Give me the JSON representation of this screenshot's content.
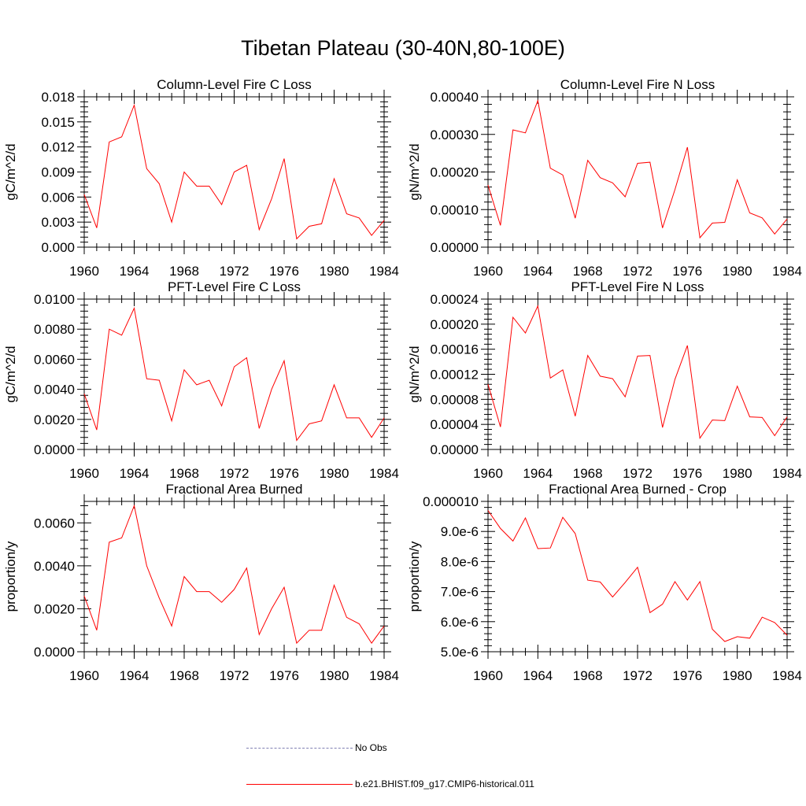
{
  "title": "Tibetan Plateau (30-40N,80-100E)",
  "colors": {
    "model": "#ff0000",
    "obs": "#7f7fb2",
    "axis": "#000000"
  },
  "legend": {
    "obs_label": "No Obs",
    "model_label": "b.e21.BHIST.f09_g17.CMIP6-historical.011"
  },
  "chart_data": [
    {
      "type": "line",
      "title": "Column-Level Fire C Loss",
      "ylabel": "gC/m^2/d",
      "xlim": [
        1960,
        1984
      ],
      "ylim": [
        0,
        0.018
      ],
      "xticks": [
        "1960",
        "1964",
        "1968",
        "1972",
        "1976",
        "1980",
        "1984"
      ],
      "yticks": [
        "0.000",
        "0.003",
        "0.006",
        "0.009",
        "0.012",
        "0.015",
        "0.018"
      ],
      "x": [
        1960,
        1961,
        1962,
        1963,
        1964,
        1965,
        1966,
        1967,
        1968,
        1969,
        1970,
        1971,
        1972,
        1973,
        1974,
        1975,
        1976,
        1977,
        1978,
        1979,
        1980,
        1981,
        1982,
        1983,
        1984
      ],
      "series": [
        {
          "values": [
            0.0063,
            0.0023,
            0.0126,
            0.0132,
            0.017,
            0.0094,
            0.0076,
            0.003,
            0.009,
            0.0073,
            0.0073,
            0.0051,
            0.009,
            0.0098,
            0.0021,
            0.0058,
            0.0106,
            0.001,
            0.0025,
            0.0028,
            0.0082,
            0.004,
            0.0035,
            0.0014,
            0.0032
          ]
        }
      ]
    },
    {
      "type": "line",
      "title": "Column-Level Fire N Loss",
      "ylabel": "gN/m^2/d",
      "xlim": [
        1960,
        1984
      ],
      "ylim": [
        0,
        0.0004
      ],
      "xticks": [
        "1960",
        "1964",
        "1968",
        "1972",
        "1976",
        "1980",
        "1984"
      ],
      "yticks": [
        "0.00000",
        "0.00010",
        "0.00020",
        "0.00030",
        "0.00040"
      ],
      "x": [
        1960,
        1961,
        1962,
        1963,
        1964,
        1965,
        1966,
        1967,
        1968,
        1969,
        1970,
        1971,
        1972,
        1973,
        1974,
        1975,
        1976,
        1977,
        1978,
        1979,
        1980,
        1981,
        1982,
        1983,
        1984
      ],
      "series": [
        {
          "values": [
            0.000165,
            5.8e-05,
            0.000312,
            0.000304,
            0.00039,
            0.00021,
            0.000192,
            7.7e-05,
            0.000231,
            0.000185,
            0.000171,
            0.000134,
            0.000223,
            0.000226,
            5.1e-05,
            0.000153,
            0.000266,
            2.5e-05,
            6.4e-05,
            6.6e-05,
            0.000179,
            9.1e-05,
            7.8e-05,
            3.5e-05,
            7.5e-05
          ]
        }
      ]
    },
    {
      "type": "line",
      "title": "PFT-Level Fire C Loss",
      "ylabel": "gC/m^2/d",
      "xlim": [
        1960,
        1984
      ],
      "ylim": [
        0,
        0.01
      ],
      "xticks": [
        "1960",
        "1964",
        "1968",
        "1972",
        "1976",
        "1980",
        "1984"
      ],
      "yticks": [
        "0.0000",
        "0.0020",
        "0.0040",
        "0.0060",
        "0.0080",
        "0.0100"
      ],
      "x": [
        1960,
        1961,
        1962,
        1963,
        1964,
        1965,
        1966,
        1967,
        1968,
        1969,
        1970,
        1971,
        1972,
        1973,
        1974,
        1975,
        1976,
        1977,
        1978,
        1979,
        1980,
        1981,
        1982,
        1983,
        1984
      ],
      "series": [
        {
          "values": [
            0.0037,
            0.0013,
            0.008,
            0.0076,
            0.0094,
            0.0047,
            0.0046,
            0.0019,
            0.0053,
            0.0043,
            0.0046,
            0.0029,
            0.0055,
            0.0061,
            0.0014,
            0.004,
            0.0059,
            0.0006,
            0.0017,
            0.0019,
            0.0043,
            0.0021,
            0.0021,
            0.0008,
            0.0021
          ]
        }
      ]
    },
    {
      "type": "line",
      "title": "PFT-Level Fire N Loss",
      "ylabel": "gN/m^2/d",
      "xlim": [
        1960,
        1984
      ],
      "ylim": [
        0,
        0.00024
      ],
      "xticks": [
        "1960",
        "1964",
        "1968",
        "1972",
        "1976",
        "1980",
        "1984"
      ],
      "yticks": [
        "0.00000",
        "0.00004",
        "0.00008",
        "0.00012",
        "0.00016",
        "0.00020",
        "0.00024"
      ],
      "x": [
        1960,
        1961,
        1962,
        1963,
        1964,
        1965,
        1966,
        1967,
        1968,
        1969,
        1970,
        1971,
        1972,
        1973,
        1974,
        1975,
        1976,
        1977,
        1978,
        1979,
        1980,
        1981,
        1982,
        1983,
        1984
      ],
      "series": [
        {
          "values": [
            0.000104,
            3.6e-05,
            0.000211,
            0.000186,
            0.000229,
            0.000114,
            0.000127,
            5.3e-05,
            0.00015,
            0.000117,
            0.000113,
            8.4e-05,
            0.000149,
            0.00015,
            3.5e-05,
            0.000112,
            0.000166,
            1.8e-05,
            4.7e-05,
            4.6e-05,
            0.000101,
            5.2e-05,
            5.1e-05,
            2.2e-05,
            5.2e-05
          ]
        }
      ]
    },
    {
      "type": "line",
      "title": "Fractional Area Burned",
      "ylabel": "proportion/y",
      "xlim": [
        1960,
        1984
      ],
      "ylim": [
        0,
        0.007
      ],
      "xticks": [
        "1960",
        "1964",
        "1968",
        "1972",
        "1976",
        "1980",
        "1984"
      ],
      "yticks": [
        "0.0000",
        "0.0020",
        "0.0040",
        "0.0060"
      ],
      "ytick_values": [
        0,
        0.002,
        0.004,
        0.006
      ],
      "x": [
        1960,
        1961,
        1962,
        1963,
        1964,
        1965,
        1966,
        1967,
        1968,
        1969,
        1970,
        1971,
        1972,
        1973,
        1974,
        1975,
        1976,
        1977,
        1978,
        1979,
        1980,
        1981,
        1982,
        1983,
        1984
      ],
      "series": [
        {
          "values": [
            0.0026,
            0.001,
            0.0051,
            0.0053,
            0.0068,
            0.004,
            0.0025,
            0.0012,
            0.0035,
            0.0028,
            0.0028,
            0.0023,
            0.0029,
            0.0039,
            0.0008,
            0.002,
            0.003,
            0.0004,
            0.001,
            0.001,
            0.0031,
            0.0016,
            0.0013,
            0.0004,
            0.0012
          ]
        }
      ]
    },
    {
      "type": "line",
      "title": "Fractional Area Burned - Crop",
      "ylabel": "proportion/y",
      "xlim": [
        1960,
        1984
      ],
      "ylim": [
        5e-06,
        1e-05
      ],
      "xticks": [
        "1960",
        "1964",
        "1968",
        "1972",
        "1976",
        "1980",
        "1984"
      ],
      "yticks": [
        "5.0e-6",
        "6.0e-6",
        "7.0e-6",
        "8.0e-6",
        "9.0e-6",
        "0.000010"
      ],
      "x": [
        1960,
        1961,
        1962,
        1963,
        1964,
        1965,
        1966,
        1967,
        1968,
        1969,
        1970,
        1971,
        1972,
        1973,
        1974,
        1975,
        1976,
        1977,
        1978,
        1979,
        1980,
        1981,
        1982,
        1983,
        1984
      ],
      "series": [
        {
          "values": [
            9.7e-06,
            9.1e-06,
            8.68e-06,
            9.45e-06,
            8.43e-06,
            8.45e-06,
            9.47e-06,
            8.93e-06,
            7.38e-06,
            7.32e-06,
            6.82e-06,
            7.3e-06,
            7.81e-06,
            6.3e-06,
            6.58e-06,
            7.33e-06,
            6.72e-06,
            7.33e-06,
            5.75e-06,
            5.34e-06,
            5.5e-06,
            5.45e-06,
            6.15e-06,
            5.97e-06,
            5.55e-06
          ]
        }
      ]
    }
  ]
}
